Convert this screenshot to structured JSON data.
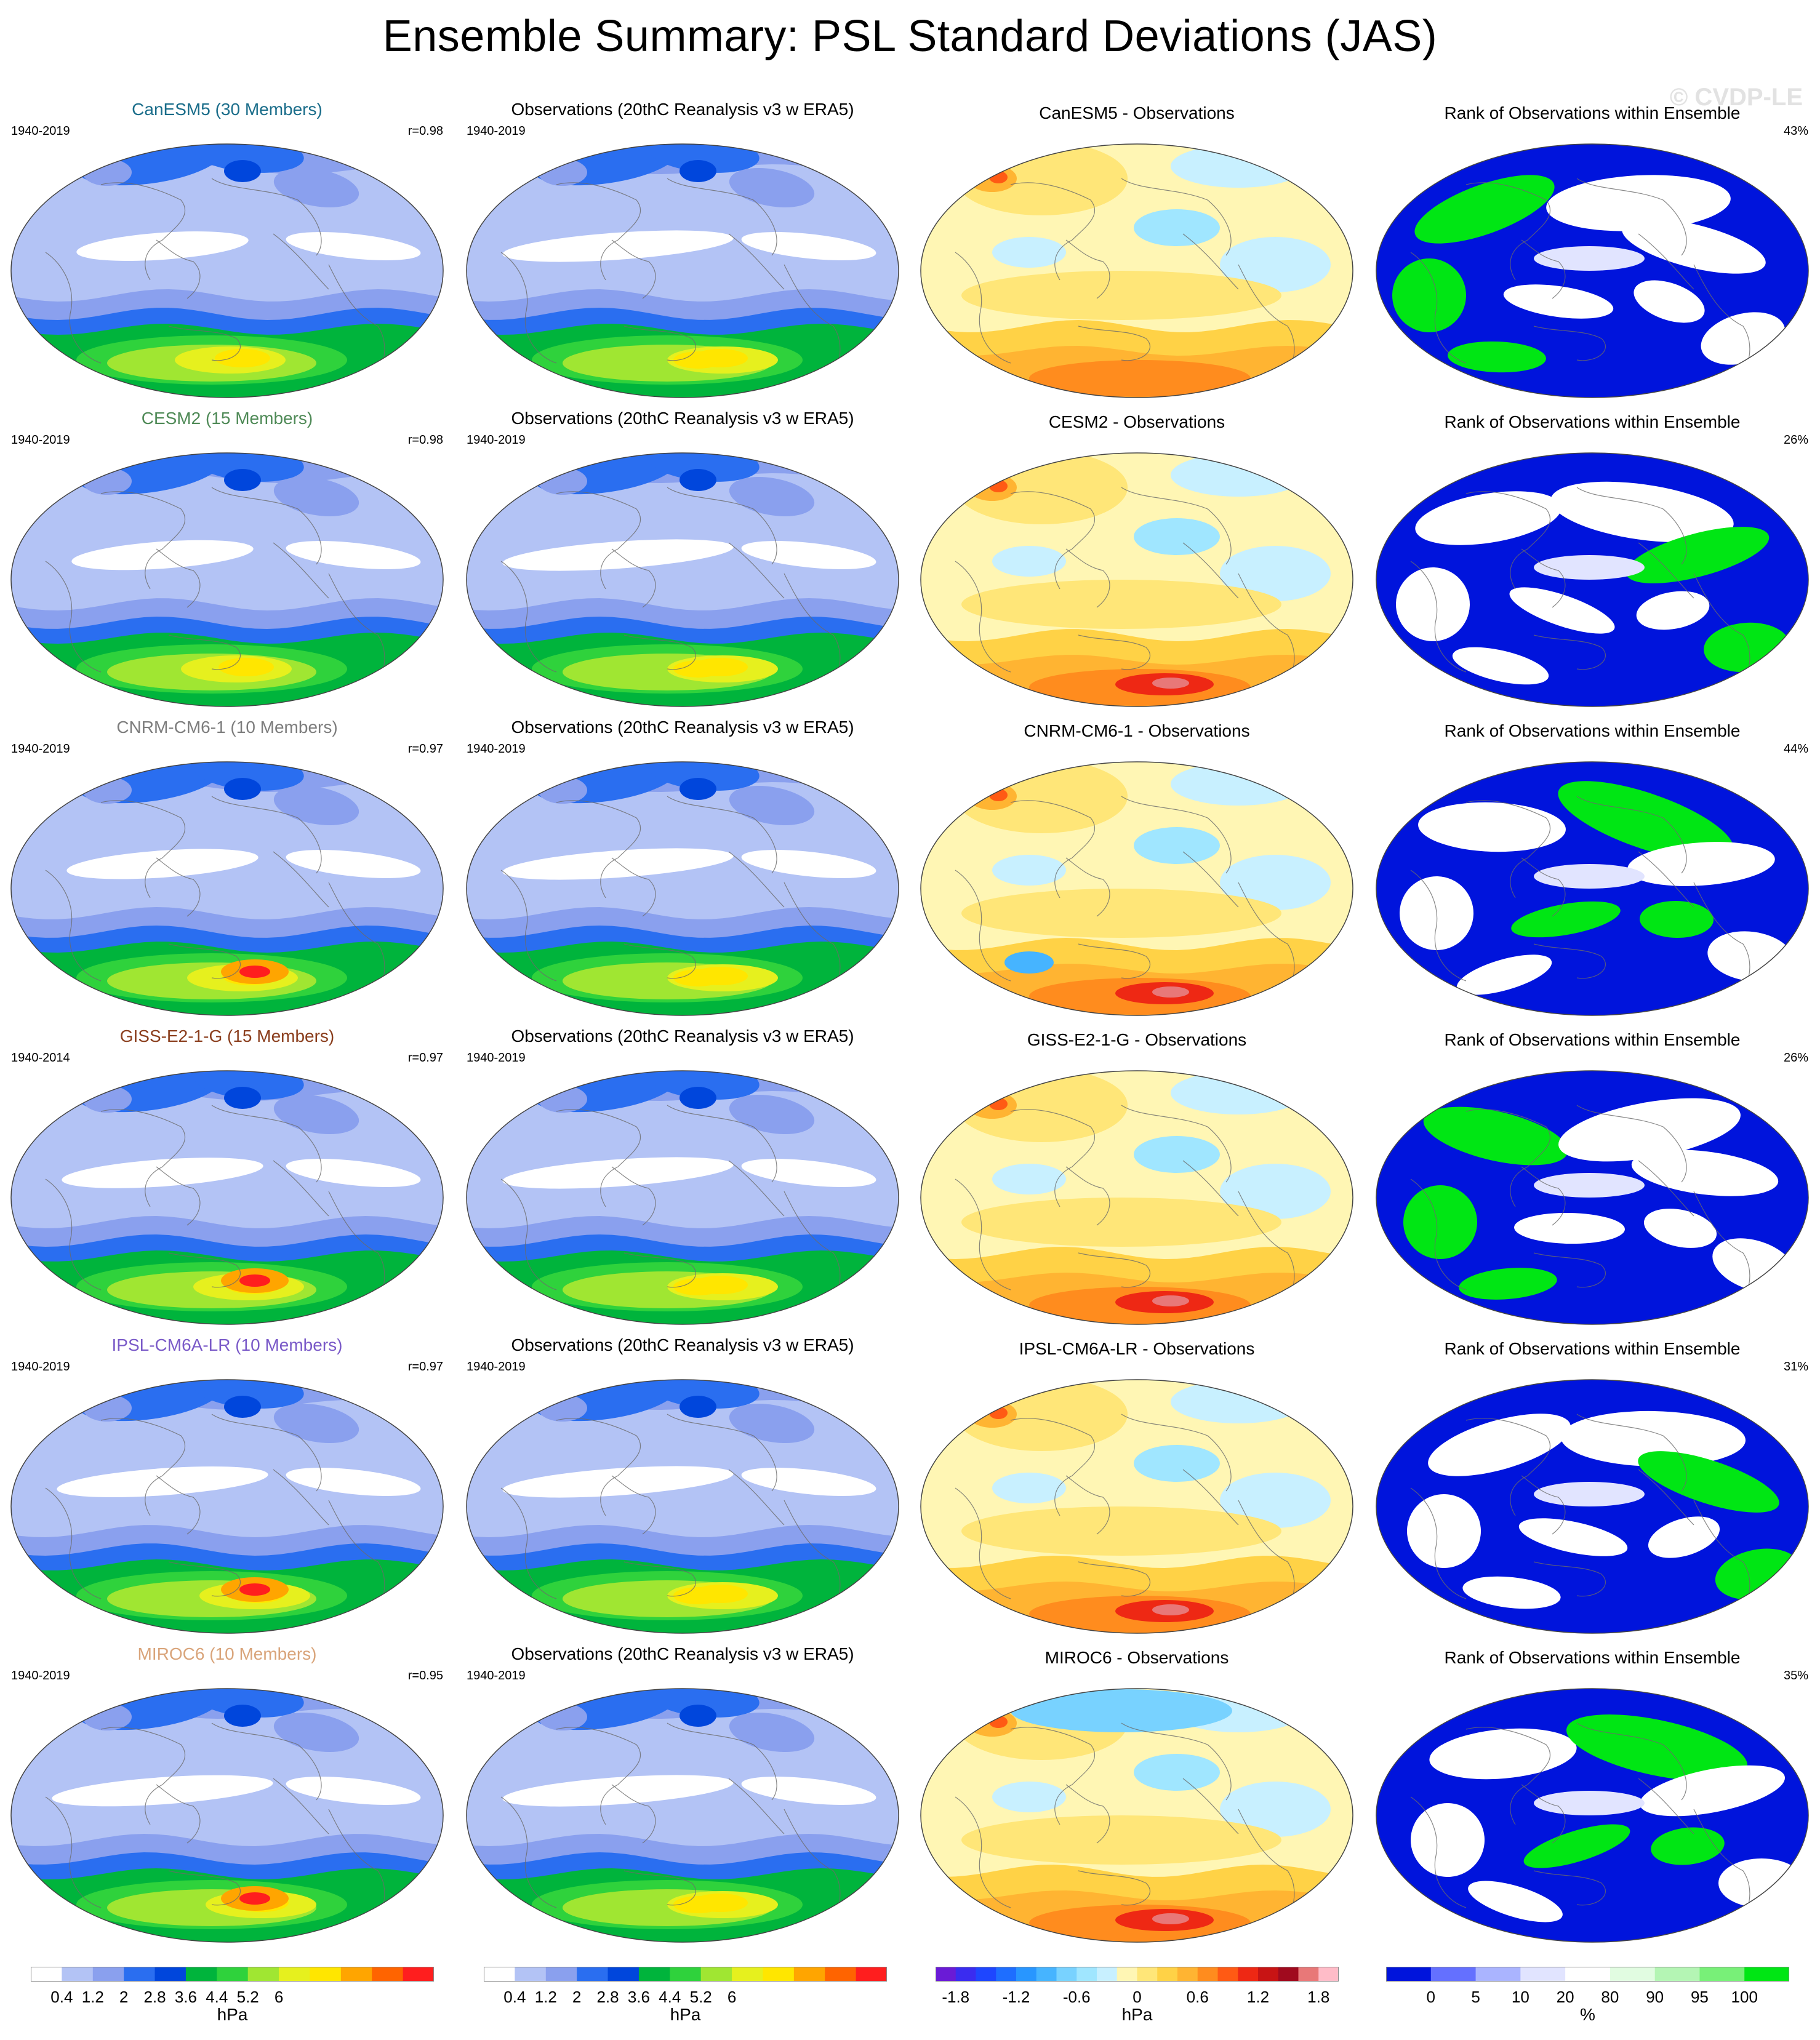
{
  "title": "Ensemble Summary: PSL Standard Deviations (JAS)",
  "watermark": "© CVDP-LE",
  "obs_title": "Observations (20thC Reanalysis v3 w ERA5)",
  "rank_title": "Rank of Observations within Ensemble",
  "rows": [
    {
      "model_title": "CanESM5 (30 Members)",
      "title_color": "#1a6d8a",
      "model_years": "1940-2019",
      "r": "r=0.98",
      "obs_years": "1940-2019",
      "diff_title": "CanESM5 - Observations",
      "rank_pct": "43%",
      "model_var": 0,
      "diff_var": 0,
      "rank_var": 0
    },
    {
      "model_title": "CESM2 (15 Members)",
      "title_color": "#4f8a57",
      "model_years": "1940-2019",
      "r": "r=0.98",
      "obs_years": "1940-2019",
      "diff_title": "CESM2 - Observations",
      "rank_pct": "26%",
      "model_var": 1,
      "diff_var": 1,
      "rank_var": 1
    },
    {
      "model_title": "CNRM-CM6-1 (10 Members)",
      "title_color": "#7d7d7d",
      "model_years": "1940-2019",
      "r": "r=0.97",
      "obs_years": "1940-2019",
      "diff_title": "CNRM-CM6-1 - Observations",
      "rank_pct": "44%",
      "model_var": 2,
      "diff_var": 2,
      "rank_var": 2
    },
    {
      "model_title": "GISS-E2-1-G (15 Members)",
      "title_color": "#8a3d1c",
      "model_years": "1940-2014",
      "r": "r=0.97",
      "obs_years": "1940-2019",
      "diff_title": "GISS-E2-1-G - Observations",
      "rank_pct": "26%",
      "model_var": 3,
      "diff_var": 3,
      "rank_var": 3
    },
    {
      "model_title": "IPSL-CM6A-LR (10 Members)",
      "title_color": "#7a5ac8",
      "model_years": "1940-2019",
      "r": "r=0.97",
      "obs_years": "1940-2019",
      "diff_title": "IPSL-CM6A-LR - Observations",
      "rank_pct": "31%",
      "model_var": 4,
      "diff_var": 4,
      "rank_var": 4
    },
    {
      "model_title": "MIROC6 (10 Members)",
      "title_color": "#d9a47a",
      "model_years": "1940-2019",
      "r": "r=0.95",
      "obs_years": "1940-2019",
      "diff_title": "MIROC6 - Observations",
      "rank_pct": "35%",
      "model_var": 5,
      "diff_var": 5,
      "rank_var": 5
    }
  ],
  "colorbars": [
    {
      "unit": "hPa",
      "colors": [
        "#ffffff",
        "#b3c3f5",
        "#8aa0ee",
        "#2a6ef0",
        "#0046dc",
        "#00b43c",
        "#2fd23c",
        "#a0e632",
        "#e6f01e",
        "#ffe600",
        "#ffa500",
        "#ff6400",
        "#ff1e1e"
      ],
      "labels": [
        "0.4",
        "1.2",
        "2",
        "2.8",
        "3.6",
        "4.4",
        "5.2",
        "6"
      ]
    },
    {
      "unit": "hPa",
      "colors": [
        "#ffffff",
        "#b3c3f5",
        "#8aa0ee",
        "#2a6ef0",
        "#0046dc",
        "#00b43c",
        "#2fd23c",
        "#a0e632",
        "#e6f01e",
        "#ffe600",
        "#ffa500",
        "#ff6400",
        "#ff1e1e"
      ],
      "labels": [
        "0.4",
        "1.2",
        "2",
        "2.8",
        "3.6",
        "4.4",
        "5.2",
        "6"
      ]
    },
    {
      "unit": "hPa",
      "colors": [
        "#6a1bd6",
        "#3a2cf0",
        "#1e46ff",
        "#1e6eff",
        "#2896ff",
        "#46b4ff",
        "#78d2ff",
        "#a0e6ff",
        "#c8f0ff",
        "#fff6b4",
        "#ffe678",
        "#ffd246",
        "#ffb432",
        "#ff8c1e",
        "#ff5a14",
        "#ee2814",
        "#c81414",
        "#a00a1e",
        "#e87878",
        "#ffbcc8"
      ],
      "labels": [
        "-1.8",
        "-1.2",
        "-0.6",
        "0",
        "0.6",
        "1.2",
        "1.8"
      ]
    },
    {
      "unit": "%",
      "colors": [
        "#0014dc",
        "#6470ff",
        "#aab4ff",
        "#e1e4ff",
        "#ffffff",
        "#e1fce1",
        "#b4f5b4",
        "#78f078",
        "#00e614"
      ],
      "labels": [
        "0",
        "5",
        "10",
        "20",
        "80",
        "90",
        "95",
        "100"
      ]
    }
  ]
}
